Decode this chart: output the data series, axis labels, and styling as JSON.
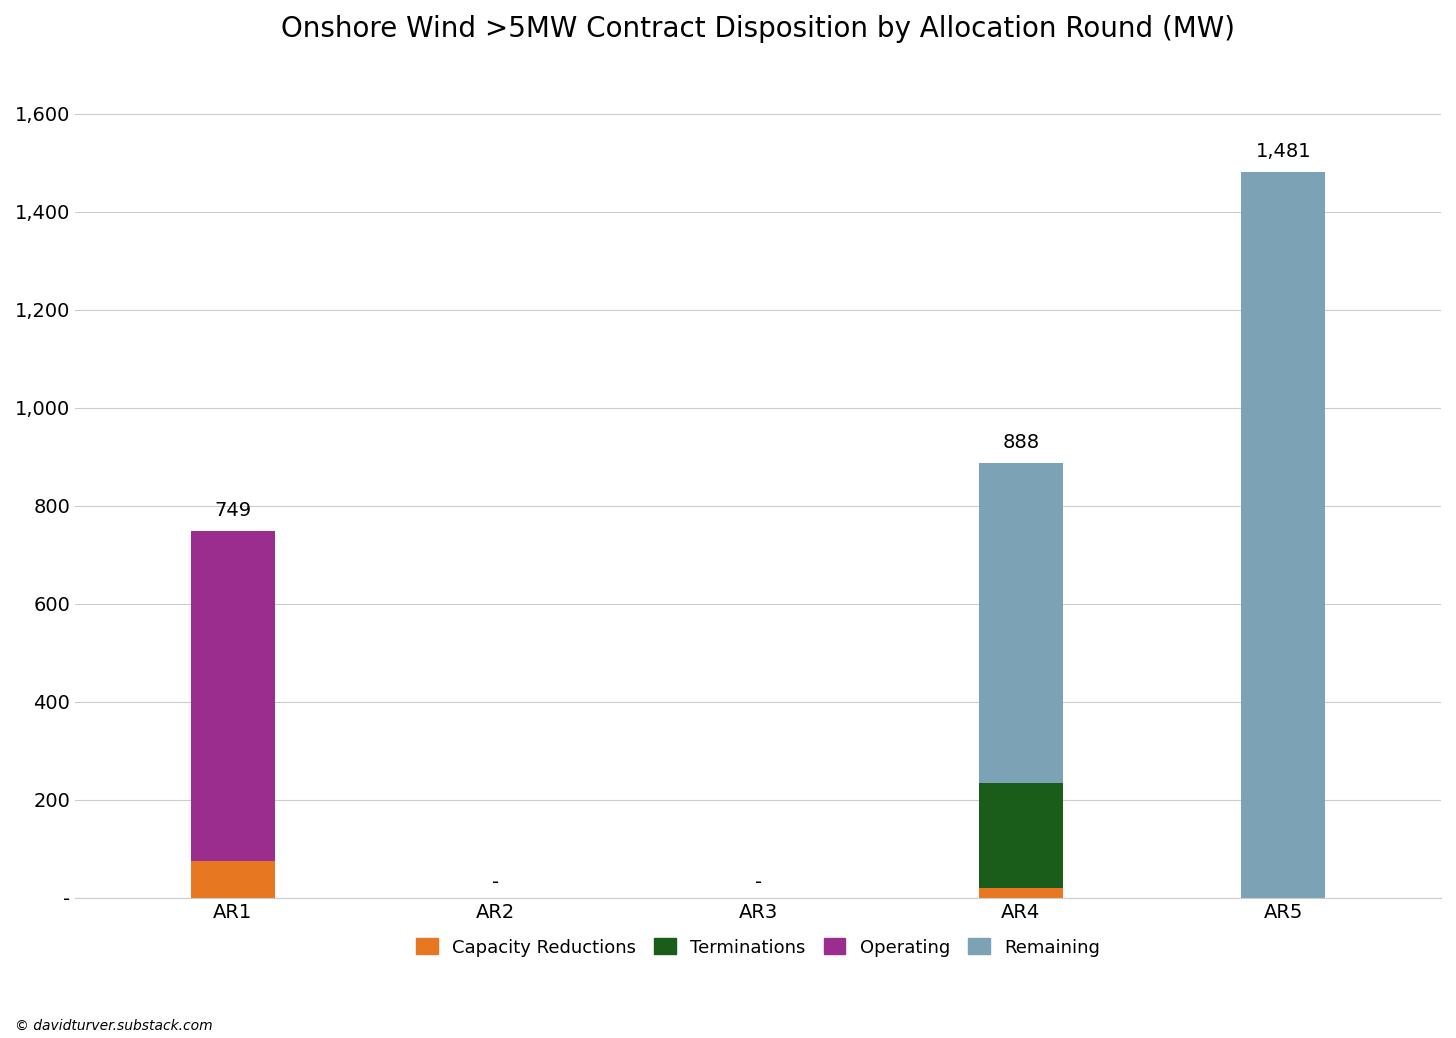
{
  "title": "Onshore Wind >5MW Contract Disposition by Allocation Round (MW)",
  "categories": [
    "AR1",
    "AR2",
    "AR3",
    "AR4",
    "AR5"
  ],
  "series": {
    "Capacity Reductions": [
      75,
      0,
      0,
      20,
      0
    ],
    "Terminations": [
      0,
      0,
      0,
      215,
      0
    ],
    "Operating": [
      674,
      0,
      0,
      0,
      0
    ],
    "Remaining": [
      0,
      0,
      0,
      653,
      1481
    ]
  },
  "colors": {
    "Capacity Reductions": "#E87722",
    "Terminations": "#1A5C1A",
    "Operating": "#9B2D8E",
    "Remaining": "#7BA3B5"
  },
  "bar_totals": [
    749,
    0,
    0,
    888,
    1481
  ],
  "bar_total_labels": [
    "749",
    "-",
    "-",
    "888",
    "1,481"
  ],
  "ylim": [
    0,
    1700
  ],
  "yticks": [
    0,
    200,
    400,
    600,
    800,
    1000,
    1200,
    1400,
    1600
  ],
  "ytick_labels": [
    "-",
    "200",
    "400",
    "600",
    "800",
    "1,000",
    "1,200",
    "1,400",
    "1,600"
  ],
  "background_color": "#FFFFFF",
  "grid_color": "#CCCCCC",
  "title_fontsize": 20,
  "tick_fontsize": 14,
  "annotation_fontsize": 14,
  "legend_fontsize": 13,
  "watermark": "© davidturver.substack.com",
  "bar_width": 0.32
}
